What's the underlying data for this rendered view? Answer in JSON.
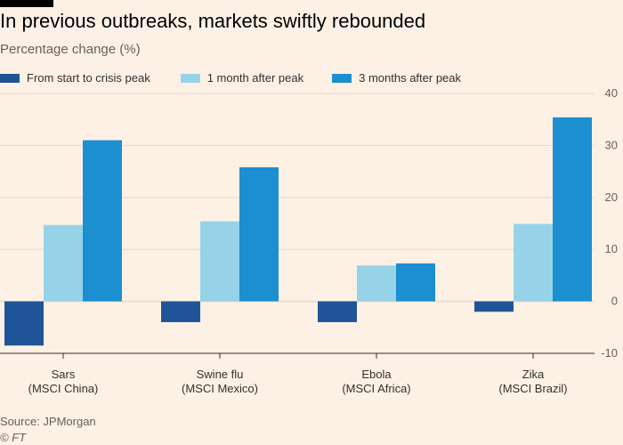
{
  "header": {
    "title": "In previous outbreaks, markets swiftly rebounded",
    "subtitle": "Percentage change (%)"
  },
  "footer": {
    "source": "Source: JPMorgan",
    "credit": "© FT"
  },
  "colors": {
    "series_0": "#1f5598",
    "series_1": "#96d3e8",
    "series_2": "#1b8fd0",
    "background": "#fdf1e5",
    "grid": "#e3d8cd",
    "axis": "#33302e",
    "tick_text": "#66605c"
  },
  "chart_data": {
    "type": "bar",
    "title": "In previous outbreaks, markets swiftly rebounded",
    "subtitle": "Percentage change (%)",
    "xlabel": "",
    "ylabel": "",
    "ylim": [
      -10,
      40
    ],
    "yticks": [
      -10,
      0,
      10,
      20,
      30,
      40
    ],
    "yaxis_side": "right",
    "grid": true,
    "legend_position": "top",
    "categories": [
      {
        "line1": "Sars",
        "line2": "(MSCI China)"
      },
      {
        "line1": "Swine flu",
        "line2": "(MSCI Mexico)"
      },
      {
        "line1": "Ebola",
        "line2": "(MSCI Africa)"
      },
      {
        "line1": "Zika",
        "line2": "(MSCI Brazil)"
      }
    ],
    "series": [
      {
        "name": "From start to crisis peak",
        "values": [
          -8.5,
          -4,
          -4,
          -2
        ]
      },
      {
        "name": "1 month after peak",
        "values": [
          14.7,
          15.4,
          6.9,
          14.9
        ]
      },
      {
        "name": "3 months after peak",
        "values": [
          31,
          25.8,
          7.3,
          35.4
        ]
      }
    ]
  }
}
